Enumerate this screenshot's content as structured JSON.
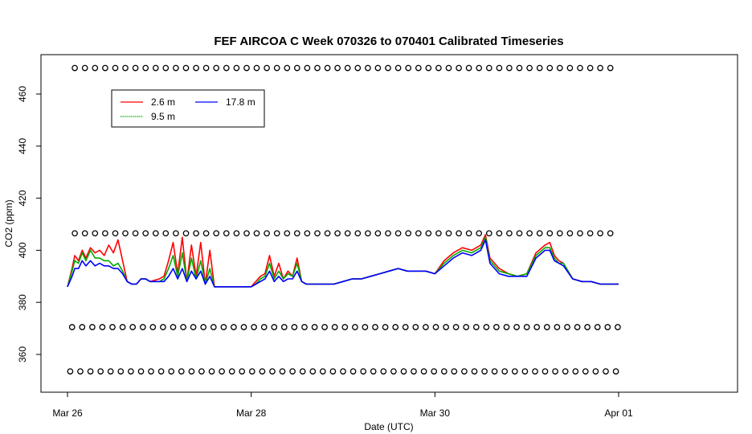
{
  "chart_data": {
    "type": "line",
    "title": "FEF AIRCOA C  Week 070326 to 070401  Calibrated Timeseries",
    "xlabel": "Date (UTC)",
    "ylabel": "CO2 (ppm)",
    "x_unit": "days",
    "xlim": [
      -0.1,
      7.1
    ],
    "ylim": [
      348,
      472
    ],
    "x_ticks": [
      {
        "x": 0,
        "label": "Mar 26"
      },
      {
        "x": 2,
        "label": "Mar 28"
      },
      {
        "x": 4,
        "label": "Mar 30"
      },
      {
        "x": 6,
        "label": "Apr 01"
      }
    ],
    "y_ticks": [
      360,
      380,
      400,
      420,
      440,
      460
    ],
    "grid": false,
    "legend": {
      "position": "top-left",
      "entries": [
        {
          "name": "2.6 m",
          "color": "#ff0000"
        },
        {
          "name": "9.5 m",
          "color": "#00aa00"
        },
        {
          "name": "17.8 m",
          "color": "#0000ff"
        }
      ]
    },
    "series": [
      {
        "name": "2.6 m",
        "color": "#ff0000",
        "x": [
          0.0,
          0.05,
          0.08,
          0.12,
          0.16,
          0.2,
          0.25,
          0.3,
          0.35,
          0.4,
          0.45,
          0.5,
          0.55,
          0.6,
          0.65,
          0.7,
          0.75,
          0.8,
          0.85,
          0.9,
          1.0,
          1.05,
          1.1,
          1.15,
          1.2,
          1.25,
          1.3,
          1.35,
          1.4,
          1.45,
          1.5,
          1.55,
          1.6,
          1.65,
          1.7,
          1.8,
          1.9,
          2.0,
          2.05,
          2.1,
          2.15,
          2.2,
          2.25,
          2.3,
          2.35,
          2.4,
          2.45,
          2.5,
          2.55,
          2.6,
          2.7,
          2.8,
          2.9,
          3.0,
          3.1,
          3.2,
          3.3,
          3.4,
          3.5,
          3.6,
          3.7,
          3.8,
          3.9,
          4.0,
          4.1,
          4.2,
          4.3,
          4.4,
          4.5,
          4.55,
          4.6,
          4.7,
          4.8,
          4.9,
          5.0,
          5.1,
          5.2,
          5.25,
          5.3,
          5.35,
          5.4,
          5.5,
          5.6,
          5.7,
          5.8,
          5.9,
          6.0
        ],
        "y": [
          386,
          393,
          398,
          396,
          400,
          397,
          401,
          399,
          400,
          398,
          402,
          399,
          404,
          396,
          388,
          387,
          387,
          389,
          389,
          388,
          389,
          390,
          396,
          403,
          391,
          405,
          388,
          402,
          390,
          403,
          387,
          400,
          386,
          386,
          386,
          386,
          386,
          386,
          388,
          390,
          391,
          398,
          390,
          395,
          389,
          392,
          390,
          397,
          388,
          387,
          387,
          387,
          387,
          388,
          389,
          389,
          390,
          391,
          392,
          393,
          392,
          392,
          392,
          391,
          396,
          399,
          401,
          400,
          402,
          406,
          397,
          393,
          391,
          390,
          391,
          399,
          402,
          403,
          398,
          396,
          395,
          389,
          388,
          388,
          387,
          387,
          387
        ]
      },
      {
        "name": "9.5 m",
        "color": "#00aa00",
        "x": [
          0.0,
          0.05,
          0.08,
          0.12,
          0.16,
          0.2,
          0.25,
          0.3,
          0.35,
          0.4,
          0.45,
          0.5,
          0.55,
          0.6,
          0.65,
          0.7,
          0.75,
          0.8,
          0.85,
          0.9,
          1.0,
          1.05,
          1.1,
          1.15,
          1.2,
          1.25,
          1.3,
          1.35,
          1.4,
          1.45,
          1.5,
          1.55,
          1.6,
          1.65,
          1.7,
          1.8,
          1.9,
          2.0,
          2.05,
          2.1,
          2.15,
          2.2,
          2.25,
          2.3,
          2.35,
          2.4,
          2.45,
          2.5,
          2.55,
          2.6,
          2.7,
          2.8,
          2.9,
          3.0,
          3.1,
          3.2,
          3.3,
          3.4,
          3.5,
          3.6,
          3.7,
          3.8,
          3.9,
          4.0,
          4.1,
          4.2,
          4.3,
          4.4,
          4.5,
          4.55,
          4.6,
          4.7,
          4.8,
          4.9,
          5.0,
          5.1,
          5.2,
          5.25,
          5.3,
          5.35,
          5.4,
          5.5,
          5.6,
          5.7,
          5.8,
          5.9,
          6.0
        ],
        "y": [
          386,
          392,
          396,
          395,
          399,
          396,
          400,
          397,
          397,
          396,
          396,
          394,
          395,
          392,
          388,
          387,
          387,
          389,
          389,
          388,
          388,
          389,
          393,
          398,
          390,
          399,
          388,
          397,
          389,
          396,
          387,
          393,
          386,
          386,
          386,
          386,
          386,
          386,
          387,
          389,
          390,
          395,
          389,
          392,
          389,
          391,
          390,
          395,
          388,
          387,
          387,
          387,
          387,
          388,
          389,
          389,
          390,
          391,
          392,
          393,
          392,
          392,
          392,
          391,
          395,
          398,
          400,
          399,
          401,
          405,
          396,
          392,
          391,
          390,
          391,
          398,
          401,
          401,
          397,
          395,
          395,
          389,
          388,
          388,
          387,
          387,
          387
        ]
      },
      {
        "name": "17.8 m",
        "color": "#0000ff",
        "x": [
          0.0,
          0.05,
          0.08,
          0.12,
          0.16,
          0.2,
          0.25,
          0.3,
          0.35,
          0.4,
          0.45,
          0.5,
          0.55,
          0.6,
          0.65,
          0.7,
          0.75,
          0.8,
          0.85,
          0.9,
          1.0,
          1.05,
          1.1,
          1.15,
          1.2,
          1.25,
          1.3,
          1.35,
          1.4,
          1.45,
          1.5,
          1.55,
          1.6,
          1.65,
          1.7,
          1.8,
          1.9,
          2.0,
          2.05,
          2.1,
          2.15,
          2.2,
          2.25,
          2.3,
          2.35,
          2.4,
          2.45,
          2.5,
          2.55,
          2.6,
          2.7,
          2.8,
          2.9,
          3.0,
          3.1,
          3.2,
          3.3,
          3.4,
          3.5,
          3.6,
          3.7,
          3.8,
          3.9,
          4.0,
          4.1,
          4.2,
          4.3,
          4.4,
          4.5,
          4.55,
          4.6,
          4.7,
          4.8,
          4.9,
          5.0,
          5.1,
          5.2,
          5.25,
          5.3,
          5.35,
          5.4,
          5.5,
          5.6,
          5.7,
          5.8,
          5.9,
          6.0
        ],
        "y": [
          386,
          390,
          393,
          393,
          396,
          394,
          396,
          394,
          395,
          394,
          394,
          393,
          393,
          391,
          388,
          387,
          387,
          389,
          389,
          388,
          388,
          388,
          390,
          393,
          389,
          393,
          388,
          392,
          389,
          392,
          387,
          390,
          386,
          386,
          386,
          386,
          386,
          386,
          387,
          388,
          389,
          392,
          388,
          390,
          388,
          389,
          389,
          392,
          388,
          387,
          387,
          387,
          387,
          388,
          389,
          389,
          390,
          391,
          392,
          393,
          392,
          392,
          392,
          391,
          394,
          397,
          399,
          398,
          400,
          404,
          395,
          391,
          390,
          390,
          390,
          397,
          400,
          400,
          396,
          395,
          394,
          389,
          388,
          388,
          387,
          387,
          387
        ]
      }
    ],
    "flag_rows": [
      {
        "name": "flags-top",
        "y": 470,
        "x_start": 0.08,
        "x_end": 6.0,
        "step": 0.11
      },
      {
        "name": "flags-upper",
        "y": 406.5,
        "x_start": 0.08,
        "x_end": 6.0,
        "step": 0.11
      },
      {
        "name": "flags-lower",
        "y": 370.5,
        "x_start": 0.05,
        "x_end": 6.0,
        "step": 0.11
      },
      {
        "name": "flags-bottom",
        "y": 353.5,
        "x_start": 0.03,
        "x_end": 6.0,
        "step": 0.11
      }
    ]
  }
}
